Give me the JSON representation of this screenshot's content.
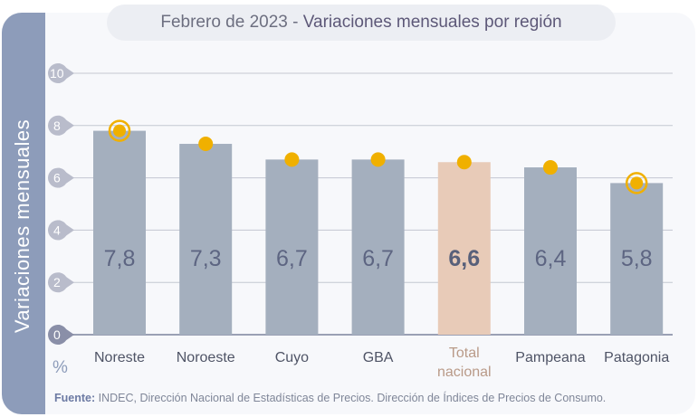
{
  "title": {
    "date": "Febrero de 2023",
    "separator": " - ",
    "subject": "Variaciones mensuales por región"
  },
  "source": {
    "label": "Fuente:",
    "text": " INDEC, Dirección Nacional de Estadísticas de Precios. Dirección de Índices de Precios de Consumo."
  },
  "colors": {
    "bar": "#a4afbe",
    "bar_total": "#e8cbb8",
    "dot": "#f0b000",
    "strip": "#8d9cba",
    "total_label": "#b99a88"
  },
  "chart_data": {
    "type": "bar",
    "ylabel": "Variaciones  mensuales",
    "yunit": "%",
    "ylim": [
      0,
      10
    ],
    "yticks": [
      0,
      2,
      4,
      6,
      8,
      10
    ],
    "grid": true,
    "categories": [
      "Noreste",
      "Noroeste",
      "Cuyo",
      "GBA",
      "Total nacional",
      "Pampeana",
      "Patagonia"
    ],
    "values": [
      7.8,
      7.3,
      6.7,
      6.7,
      6.6,
      6.4,
      5.8
    ],
    "value_labels": [
      "7,8",
      "7,3",
      "6,7",
      "6,7",
      "6,6",
      "6,4",
      "5,8"
    ],
    "highlighted": [
      "Noreste",
      "Patagonia"
    ],
    "emphasized": "Total nacional"
  }
}
